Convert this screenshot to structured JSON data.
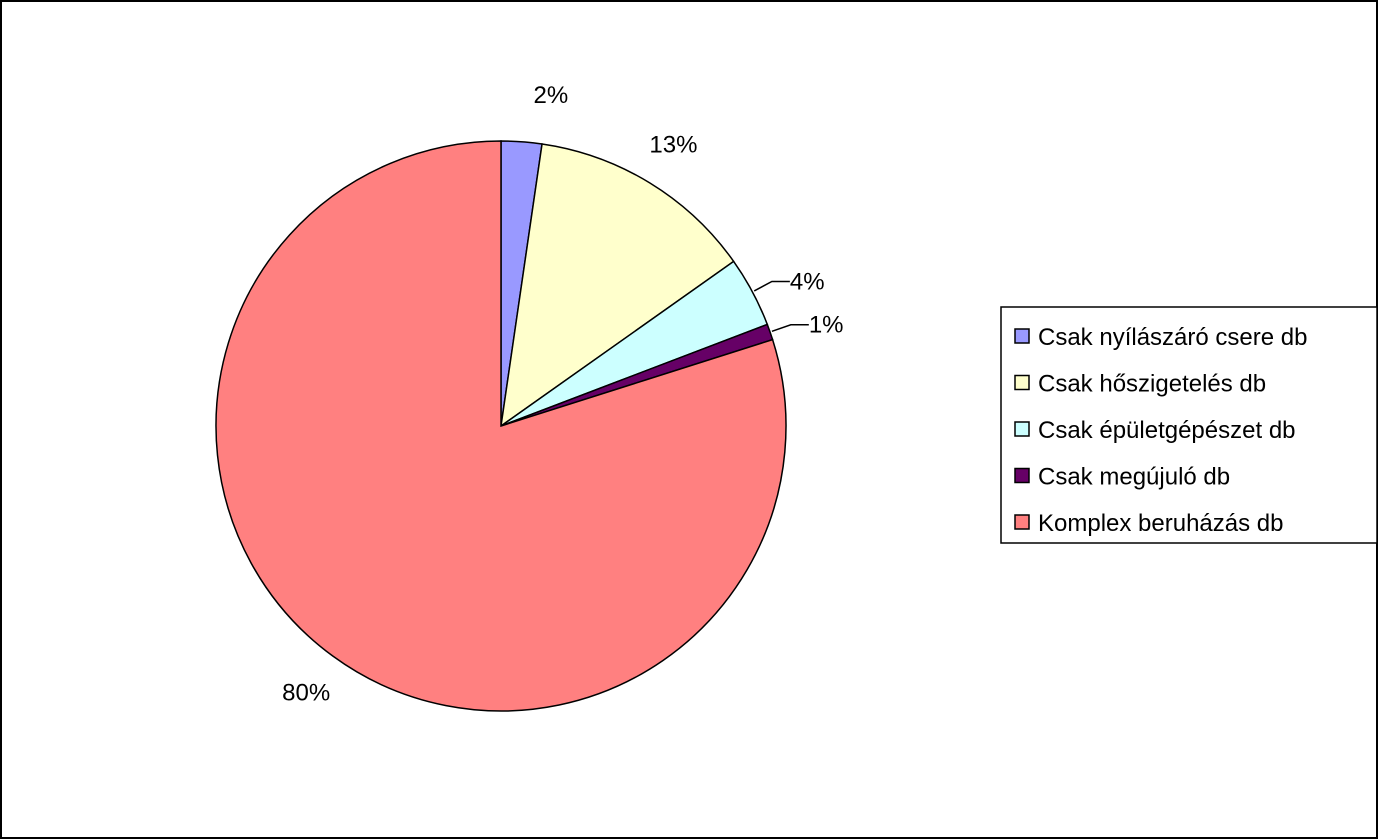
{
  "chart_data": {
    "type": "pie",
    "labels": [
      "Csak nyílászáró csere db",
      "Csak hőszigetelés db",
      "Csak épületgépészet db",
      "Csak megújuló db",
      "Komplex beruházás db"
    ],
    "values": [
      2.3,
      12.9,
      4.0,
      0.9,
      79.9
    ],
    "data_labels": [
      "2%",
      "13%",
      "4%",
      "1%",
      "80%"
    ],
    "colors": [
      "#9999FF",
      "#FFFFCC",
      "#CCFFFF",
      "#660066",
      "#FF8080"
    ],
    "start_angle_deg": 0,
    "direction": "clockwise",
    "legend_position": "right"
  }
}
